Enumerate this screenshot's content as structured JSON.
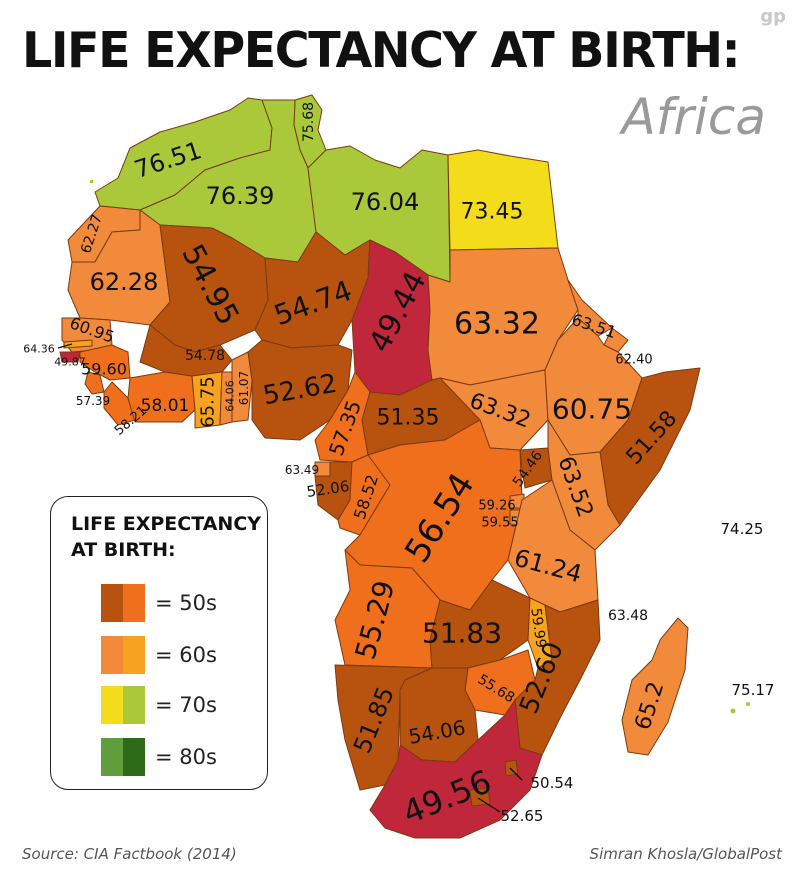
{
  "header": {
    "title": "LIFE EXPECTANCY AT BIRTH:",
    "subtitle": "Africa",
    "logo": "gp"
  },
  "legend": {
    "title_line1": "LIFE EXPECTANCY",
    "title_line2": "AT BIRTH:",
    "items": [
      {
        "label": "= 50s",
        "colors": [
          "#b7530f",
          "#f06f1c"
        ]
      },
      {
        "label": "= 60s",
        "colors": [
          "#f28a3c",
          "#f8a31e"
        ]
      },
      {
        "label": "= 70s",
        "colors": [
          "#f3dd1a",
          "#a9c93b"
        ]
      },
      {
        "label": "= 80s",
        "colors": [
          "#5f9e3b",
          "#2e6b18"
        ]
      }
    ]
  },
  "footer": {
    "source": "Source: CIA Factbook (2014)",
    "credit": "Simran Khosla/GlobalPost"
  },
  "map_values": {
    "morocco": "76.51",
    "tunisia": "75.68",
    "algeria": "76.39",
    "libya": "76.04",
    "egypt": "73.45",
    "western_sahara": "62.27",
    "mauritania": "62.28",
    "mali": "54.95",
    "niger": "54.74",
    "chad": "49.44",
    "sudan": "63.32",
    "eritrea": "63.51",
    "djibouti": "62.40",
    "senegal": "60.95",
    "gambia": "64.36",
    "guinea_bissau": "49.87",
    "guinea": "59.60",
    "sierra_leone": "57.39",
    "liberia": "58.21",
    "ivory_coast": "58.01",
    "burkina_faso": "54.78",
    "ghana": "65.75",
    "togo": "64.06",
    "benin": "61.07",
    "nigeria": "52.62",
    "cameroon": "57.35",
    "car": "51.35",
    "south_sudan": "63.32",
    "ethiopia": "60.75",
    "somalia": "51.58",
    "equatorial_guinea": "63.49",
    "gabon": "52.06",
    "congo": "58.52",
    "drc": "56.54",
    "uganda": "54.46",
    "kenya": "63.52",
    "rwanda": "59.26",
    "burundi": "59.55",
    "tanzania": "61.24",
    "seychelles": "74.25",
    "angola": "55.29",
    "zambia": "51.83",
    "malawi": "59.99",
    "comoros": "63.48",
    "mozambique": "52.60",
    "madagascar": "65.2",
    "mauritius": "75.17",
    "zimbabwe": "55.68",
    "namibia": "51.85",
    "botswana": "54.06",
    "south_africa": "49.56",
    "swaziland": "50.54",
    "lesotho": "52.65"
  }
}
